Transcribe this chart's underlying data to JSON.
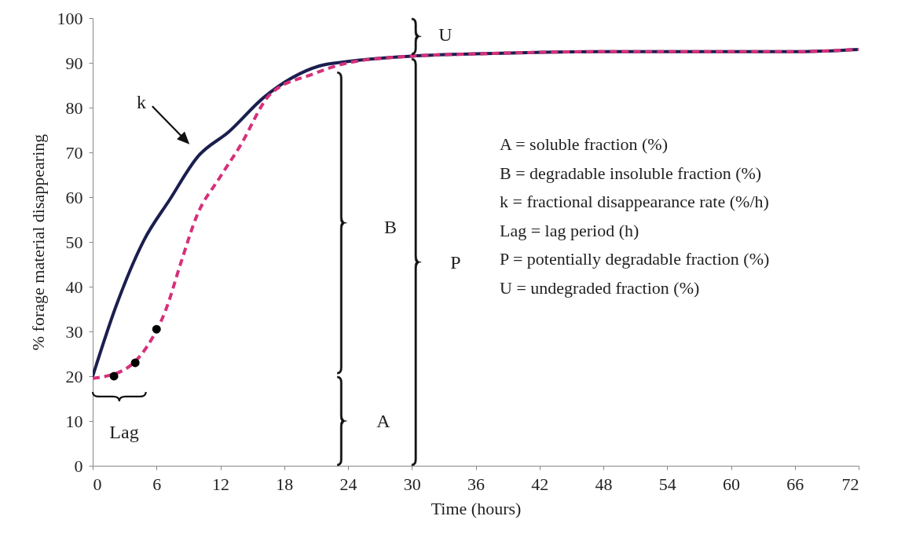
{
  "chart_data": {
    "type": "line",
    "xlabel": "Time (hours)",
    "ylabel": "% forage material disappearing",
    "xlim": [
      0,
      72
    ],
    "xticks": [
      0,
      6,
      12,
      18,
      24,
      30,
      36,
      42,
      48,
      54,
      60,
      66,
      72
    ],
    "ylim": [
      0,
      100
    ],
    "yticks": [
      0,
      10,
      20,
      30,
      40,
      50,
      60,
      70,
      80,
      90,
      100
    ],
    "grid": false,
    "series": [
      {
        "type": "line",
        "color": "#1b1f4f",
        "line_style": "solid",
        "marker": "none",
        "x": [
          0,
          2.2,
          4.8,
          7.2,
          9.9,
          12.8,
          16.1,
          21.3,
          24,
          30,
          36,
          48,
          60,
          66,
          72
        ],
        "values": [
          20,
          35.7,
          50.3,
          59.3,
          69.1,
          74.6,
          82.3,
          89.3,
          90.3,
          91.5,
          92,
          92.5,
          92.5,
          92.5,
          93
        ]
      },
      {
        "type": "line",
        "color": "#d6307a",
        "line_style": "dashed",
        "marker": "none",
        "x": [
          0,
          3,
          5.1,
          6.9,
          8.3,
          9.8,
          11.9,
          13.8,
          16.7,
          20.7,
          24,
          30,
          36,
          48,
          60,
          66,
          72
        ],
        "values": [
          19.5,
          21.5,
          26.6,
          35,
          45.4,
          55.9,
          64.2,
          71.2,
          83,
          87.5,
          90,
          91.5,
          92,
          92.5,
          92.5,
          92.5,
          93
        ]
      },
      {
        "type": "scatter",
        "color": "#000000",
        "marker": "circle",
        "x": [
          2,
          4,
          6
        ],
        "values": [
          20,
          23,
          30.5
        ]
      }
    ],
    "annotations": [
      "k",
      "Lag",
      "A",
      "B",
      "P",
      "U",
      "A = soluble fraction (%)",
      "B = degradable insoluble fraction (%)",
      "k = fractional disappearance rate (%/h)",
      "Lag = lag period (h)",
      "P = potentially degradable fraction (%)",
      "U = undegraded fraction (%)"
    ]
  }
}
